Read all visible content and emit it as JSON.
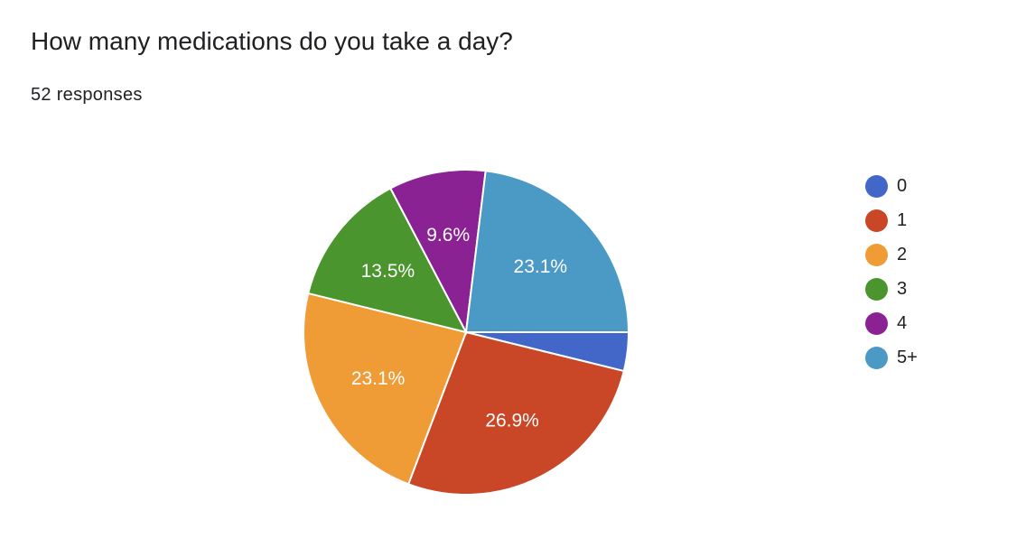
{
  "header": {
    "title": "How many medications do you take a day?",
    "subtitle": "52 responses"
  },
  "chart_data": {
    "type": "pie",
    "title": "How many medications do you take a day?",
    "total_responses": 52,
    "legend_position": "right",
    "categories": [
      "0",
      "1",
      "2",
      "3",
      "4",
      "5+"
    ],
    "values": [
      2,
      14,
      12,
      7,
      5,
      12
    ],
    "percent_labels": [
      "",
      "26.9%",
      "23.1%",
      "13.5%",
      "9.6%",
      "23.1%"
    ],
    "colors": [
      "#4267c8",
      "#c94626",
      "#f09c36",
      "#4a952e",
      "#8a2294",
      "#4b9ac5"
    ]
  }
}
